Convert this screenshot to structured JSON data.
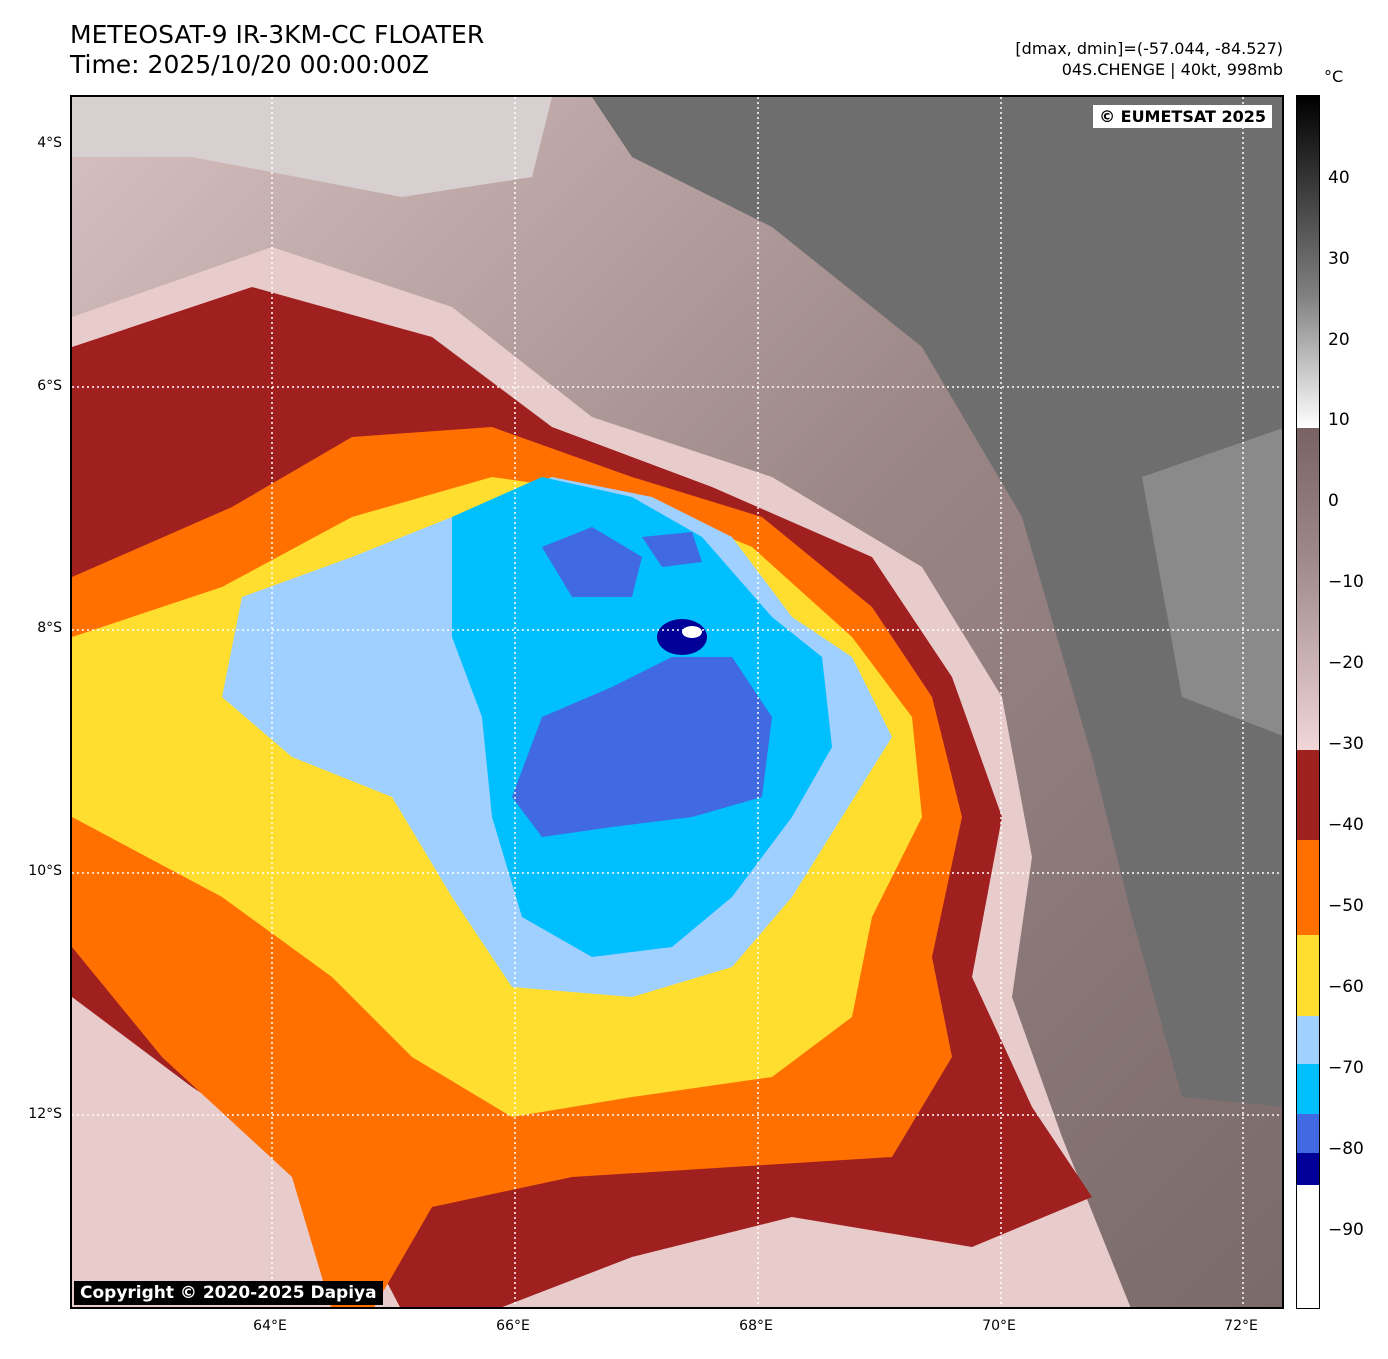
{
  "title_line1": "METEOSAT-9 IR-3KM-CC FLOATER",
  "title_line2": "Time: 2025/10/20 00:00:00Z",
  "meta_line1": "[dmax, dmin]=(-57.044, -84.527)",
  "meta_line2": "04S.CHENGE | 40kt, 998mb",
  "badge_top_right": "© EUMETSAT 2025",
  "badge_bottom_left": "Copyright © 2020-2025 Dapiya",
  "colorbar_unit": "°C",
  "lat_labels": [
    "4°S",
    "6°S",
    "8°S",
    "10°S",
    "12°S"
  ],
  "lon_labels": [
    "64°E",
    "66°E",
    "68°E",
    "70°E",
    "72°E"
  ],
  "colorbar_labels": [
    "40",
    "30",
    "20",
    "10",
    "0",
    "−10",
    "−20",
    "−30",
    "−40",
    "−50",
    "−60",
    "−70",
    "−80",
    "−90"
  ],
  "colorbar_colors": {
    "warm_dark": "#000000",
    "warm_gray": "#808080",
    "light": "#ffffff",
    "brown": "#8f7575",
    "pink": "#f0d6d6",
    "maroon": "#a02020",
    "orange": "#ff7000",
    "yellow": "#ffde30",
    "light_blue": "#a0d0ff",
    "cyan": "#00bfff",
    "royal_blue": "#4169e1",
    "navy": "#000099",
    "white": "#ffffff"
  }
}
